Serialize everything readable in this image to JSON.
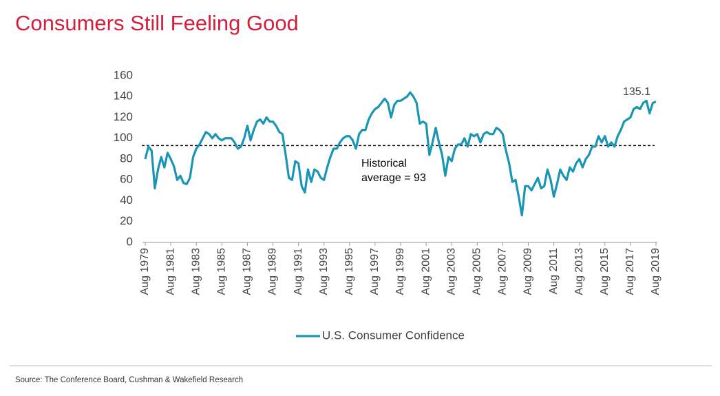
{
  "chart_data": {
    "type": "line",
    "title": "Consumers Still Feeling Good",
    "source": "Source:  The Conference Board, Cushman & Wakefield Research",
    "ylim": [
      0,
      160
    ],
    "yticks": [
      0,
      20,
      40,
      60,
      80,
      100,
      120,
      140,
      160
    ],
    "xlim": [
      "1979-08",
      "2019-08"
    ],
    "xticks": [
      {
        "value": "1979-08",
        "label": "Aug 1979"
      },
      {
        "value": "1981-08",
        "label": "Aug 1981"
      },
      {
        "value": "1983-08",
        "label": "Aug 1983"
      },
      {
        "value": "1985-08",
        "label": "Aug 1985"
      },
      {
        "value": "1987-08",
        "label": "Aug 1987"
      },
      {
        "value": "1989-08",
        "label": "Aug 1989"
      },
      {
        "value": "1991-08",
        "label": "Aug 1991"
      },
      {
        "value": "1993-08",
        "label": "Aug 1993"
      },
      {
        "value": "1995-08",
        "label": "Aug 1995"
      },
      {
        "value": "1997-08",
        "label": "Aug 1997"
      },
      {
        "value": "1999-08",
        "label": "Aug 1999"
      },
      {
        "value": "2001-08",
        "label": "Aug 2001"
      },
      {
        "value": "2003-08",
        "label": "Aug 2003"
      },
      {
        "value": "2005-08",
        "label": "Aug 2005"
      },
      {
        "value": "2007-08",
        "label": "Aug 2007"
      },
      {
        "value": "2009-08",
        "label": "Aug 2009"
      },
      {
        "value": "2011-08",
        "label": "Aug 2011"
      },
      {
        "value": "2013-08",
        "label": "Aug 2013"
      },
      {
        "value": "2015-08",
        "label": "Aug 2015"
      },
      {
        "value": "2017-08",
        "label": "Aug 2017"
      },
      {
        "value": "2019-08",
        "label": "Aug 2019"
      }
    ],
    "reference_line": {
      "value": 93,
      "label": [
        "Historical",
        "average = 93"
      ]
    },
    "x": [
      "1979-08",
      "1979-11",
      "1980-02",
      "1980-05",
      "1980-08",
      "1980-11",
      "1981-02",
      "1981-05",
      "1981-08",
      "1981-11",
      "1982-02",
      "1982-05",
      "1982-08",
      "1982-11",
      "1983-02",
      "1983-05",
      "1983-08",
      "1983-11",
      "1984-02",
      "1984-05",
      "1984-08",
      "1984-11",
      "1985-02",
      "1985-05",
      "1985-08",
      "1985-11",
      "1986-02",
      "1986-05",
      "1986-08",
      "1986-11",
      "1987-02",
      "1987-05",
      "1987-08",
      "1987-11",
      "1988-02",
      "1988-05",
      "1988-08",
      "1988-11",
      "1989-02",
      "1989-05",
      "1989-08",
      "1989-11",
      "1990-02",
      "1990-05",
      "1990-08",
      "1990-11",
      "1991-02",
      "1991-05",
      "1991-08",
      "1991-11",
      "1992-02",
      "1992-05",
      "1992-08",
      "1992-11",
      "1993-02",
      "1993-05",
      "1993-08",
      "1993-11",
      "1994-02",
      "1994-05",
      "1994-08",
      "1994-11",
      "1995-02",
      "1995-05",
      "1995-08",
      "1995-11",
      "1996-02",
      "1996-05",
      "1996-08",
      "1996-11",
      "1997-02",
      "1997-05",
      "1997-08",
      "1997-11",
      "1998-02",
      "1998-05",
      "1998-08",
      "1998-11",
      "1999-02",
      "1999-05",
      "1999-08",
      "1999-11",
      "2000-02",
      "2000-05",
      "2000-08",
      "2000-11",
      "2001-02",
      "2001-05",
      "2001-08",
      "2001-11",
      "2002-02",
      "2002-05",
      "2002-08",
      "2002-11",
      "2003-02",
      "2003-05",
      "2003-08",
      "2003-11",
      "2004-02",
      "2004-05",
      "2004-08",
      "2004-11",
      "2005-02",
      "2005-05",
      "2005-08",
      "2005-11",
      "2006-02",
      "2006-05",
      "2006-08",
      "2006-11",
      "2007-02",
      "2007-05",
      "2007-08",
      "2007-11",
      "2008-02",
      "2008-05",
      "2008-08",
      "2008-11",
      "2009-02",
      "2009-05",
      "2009-08",
      "2009-11",
      "2010-02",
      "2010-05",
      "2010-08",
      "2010-11",
      "2011-02",
      "2011-05",
      "2011-08",
      "2011-11",
      "2012-02",
      "2012-05",
      "2012-08",
      "2012-11",
      "2013-02",
      "2013-05",
      "2013-08",
      "2013-11",
      "2014-02",
      "2014-05",
      "2014-08",
      "2014-11",
      "2015-02",
      "2015-05",
      "2015-08",
      "2015-11",
      "2016-02",
      "2016-05",
      "2016-08",
      "2016-11",
      "2017-02",
      "2017-05",
      "2017-08",
      "2017-11",
      "2018-02",
      "2018-05",
      "2018-08",
      "2018-11",
      "2019-02",
      "2019-05",
      "2019-08"
    ],
    "series": [
      {
        "name": "U.S. Consumer Confidence",
        "color": "#1a96b4",
        "values": [
          80,
          92,
          88,
          52,
          70,
          82,
          72,
          86,
          80,
          73,
          60,
          64,
          57,
          56,
          62,
          82,
          90,
          94,
          100,
          106,
          104,
          100,
          104,
          100,
          98,
          100,
          100,
          100,
          96,
          90,
          92,
          100,
          112,
          98,
          108,
          116,
          118,
          114,
          120,
          116,
          116,
          112,
          106,
          104,
          84,
          62,
          60,
          78,
          76,
          54,
          48,
          70,
          58,
          70,
          68,
          62,
          60,
          72,
          82,
          90,
          90,
          96,
          100,
          102,
          102,
          98,
          90,
          104,
          108,
          108,
          118,
          124,
          128,
          130,
          134,
          138,
          134,
          120,
          132,
          136,
          136,
          138,
          140,
          144,
          140,
          134,
          114,
          116,
          114,
          84,
          96,
          110,
          96,
          84,
          64,
          82,
          78,
          90,
          94,
          94,
          100,
          92,
          104,
          102,
          104,
          96,
          104,
          106,
          104,
          104,
          110,
          108,
          104,
          88,
          76,
          58,
          60,
          44,
          26,
          54,
          54,
          50,
          56,
          62,
          52,
          54,
          70,
          60,
          44,
          56,
          70,
          64,
          60,
          72,
          68,
          76,
          80,
          72,
          80,
          84,
          92,
          92,
          102,
          96,
          102,
          92,
          96,
          92,
          102,
          108,
          116,
          118,
          120,
          128,
          130,
          128,
          134,
          136,
          124,
          134,
          135.1
        ]
      }
    ]
  }
}
